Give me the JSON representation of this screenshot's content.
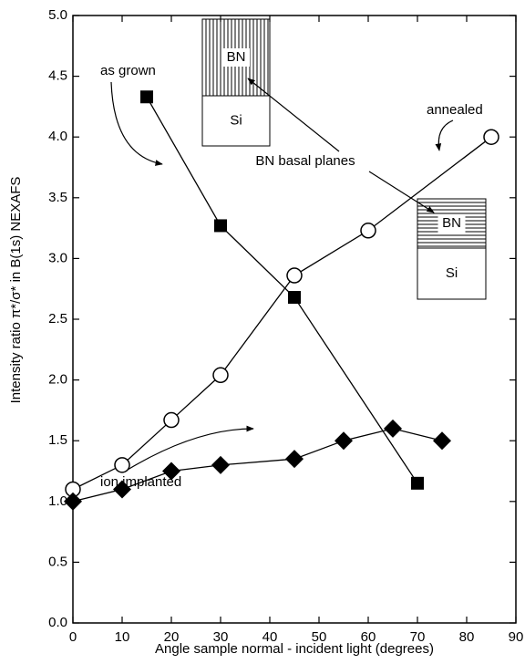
{
  "chart_data": {
    "type": "line",
    "xlabel": "Angle sample normal - incident light (degrees)",
    "ylabel": "Intensity ratio  π*/σ* in B(1s) NEXAFS",
    "xlim": [
      0,
      90
    ],
    "xticks": [
      0,
      10,
      20,
      30,
      40,
      50,
      60,
      70,
      80,
      90
    ],
    "ylim": [
      0,
      5
    ],
    "yticks": [
      {
        "value": 0,
        "label": "0.0"
      },
      0.5,
      {
        "value": 1,
        "label": "1.0"
      },
      1.5,
      {
        "value": 2,
        "label": "2.0"
      },
      2.5,
      {
        "value": 3,
        "label": "3.0"
      },
      3.5,
      {
        "value": 4,
        "label": "4.0"
      },
      4.5,
      {
        "value": 5,
        "label": "5.0"
      }
    ],
    "series": [
      {
        "name": "as grown",
        "color": "#000000",
        "marker": "square",
        "x": [
          15,
          30,
          45,
          70
        ],
        "values": [
          4.33,
          3.27,
          2.68,
          1.15
        ]
      },
      {
        "name": "annealed",
        "color": "#000000",
        "marker": "circle",
        "x": [
          0,
          10,
          20,
          30,
          45,
          60,
          85
        ],
        "values": [
          1.1,
          1.3,
          1.67,
          2.04,
          2.86,
          3.23,
          4.0
        ]
      },
      {
        "name": "ion implanted",
        "color": "#000000",
        "marker": "diamond",
        "x": [
          0,
          10,
          20,
          30,
          45,
          55,
          65,
          75
        ],
        "values": [
          1.0,
          1.1,
          1.25,
          1.3,
          1.35,
          1.5,
          1.6,
          1.5
        ]
      }
    ],
    "annotations": {
      "basal": "BN basal planes",
      "insets": [
        {
          "top": "BN",
          "bottom": "Si"
        },
        {
          "top": "BN",
          "bottom": "Si"
        }
      ]
    }
  }
}
